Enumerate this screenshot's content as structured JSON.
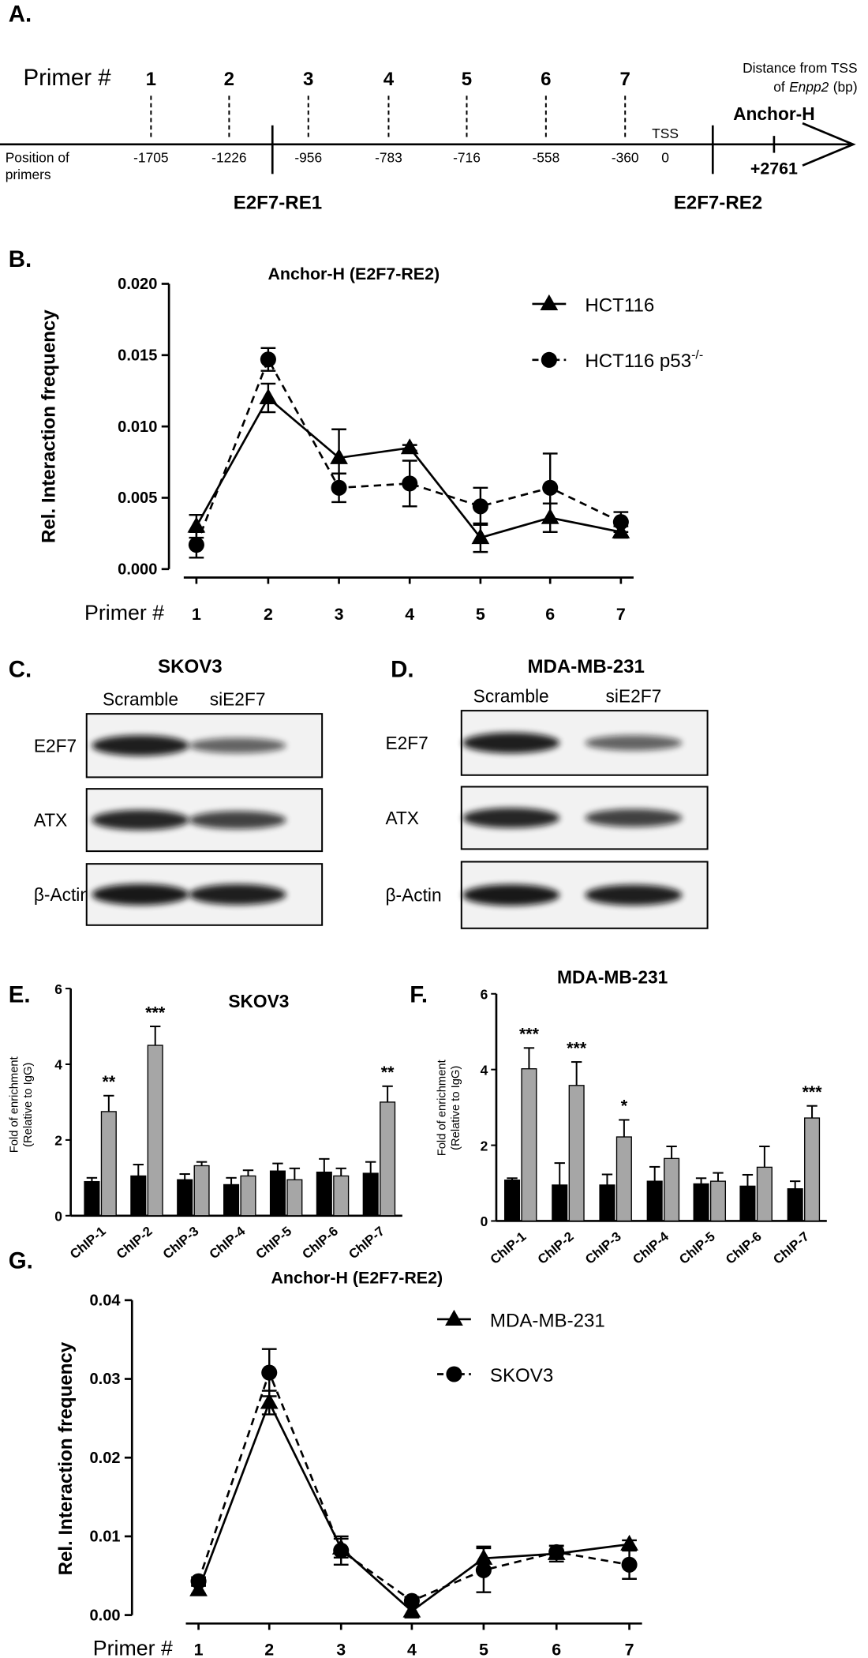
{
  "diagram": {
    "panel_label": "A.",
    "primer_heading": "Primer #",
    "primers": [
      {
        "number": 1,
        "position": -1705
      },
      {
        "number": 2,
        "position": -1226
      },
      {
        "number": 3,
        "position": -956
      },
      {
        "number": 4,
        "position": -783
      },
      {
        "number": 5,
        "position": -716
      },
      {
        "number": 6,
        "position": -558
      },
      {
        "number": 7,
        "position": -360
      }
    ],
    "position_heading": [
      "Position of",
      "primers"
    ],
    "tss_label": "TSS",
    "tss_position": 0,
    "distance_note": [
      "Distance from TSS",
      "of",
      "Enpp2",
      "(bp)"
    ],
    "anchor_label": "Anchor-H",
    "anchor_position": "+2761",
    "element_labels": [
      "E2F7-RE1",
      "E2F7-RE2"
    ]
  },
  "blots": [
    {
      "panel_label": "C.",
      "title": "SKOV3",
      "lanes": [
        "Scramble",
        "siE2F7"
      ],
      "rows": [
        "E2F7",
        "ATX",
        "β-Actin"
      ]
    },
    {
      "panel_label": "D.",
      "title": "MDA-MB-231",
      "lanes": [
        "Scramble",
        "siE2F7"
      ],
      "rows": [
        "E2F7",
        "ATX",
        "β-Actin"
      ]
    }
  ],
  "chart_data": [
    {
      "type": "line",
      "panel_label": "B.",
      "title": "Anchor-H (E2F7-RE2)",
      "y_label": "Rel. Interaction frequency",
      "x_label": "Primer #",
      "categories": [
        "1",
        "2",
        "3",
        "4",
        "5",
        "6",
        "7"
      ],
      "series": [
        {
          "name": "HCT116",
          "marker": "triangle",
          "dashed": false,
          "color": "#000000",
          "values": [
            0.003,
            0.012,
            0.0078,
            0.0085,
            0.0022,
            0.0036,
            0.0026
          ],
          "errors": [
            0.0008,
            0.001,
            0.002,
            0.0002,
            0.001,
            0.001,
            0.0004
          ]
        },
        {
          "name": "HCT116 p53",
          "name_sup": "-/-",
          "marker": "circle",
          "dashed": true,
          "color": "#000000",
          "values": [
            0.0017,
            0.0147,
            0.0057,
            0.006,
            0.0044,
            0.0057,
            0.0033
          ],
          "errors": [
            0.0009,
            0.0008,
            0.001,
            0.0016,
            0.0013,
            0.0024,
            0.0007
          ]
        }
      ],
      "ylim": [
        0,
        0.02
      ],
      "yticks": [
        {
          "value": 0,
          "label": "0.000"
        },
        {
          "value": 0.005,
          "label": "0.005"
        },
        {
          "value": 0.01,
          "label": "0.010"
        },
        {
          "value": 0.015,
          "label": "0.015"
        },
        {
          "value": 0.02,
          "label": "0.020"
        }
      ]
    },
    {
      "type": "bar",
      "panel_label": "E.",
      "title": "SKOV3",
      "y_label": [
        "Fold of enrichment",
        "(Relative to IgG)"
      ],
      "categories": [
        "ChIP-1",
        "ChIP-2",
        "ChIP-3",
        "ChIP-4",
        "ChIP-5",
        "ChIP-6",
        "ChIP-7"
      ],
      "series": [
        {
          "color": "#000000",
          "values": [
            0.9,
            1.05,
            0.95,
            0.82,
            1.18,
            1.15,
            1.12
          ],
          "errors": [
            0.1,
            0.3,
            0.15,
            0.18,
            0.2,
            0.35,
            0.3
          ]
        },
        {
          "color": "#a6a6a6",
          "values": [
            2.75,
            4.5,
            1.32,
            1.05,
            0.95,
            1.05,
            3.0
          ],
          "errors": [
            0.42,
            0.5,
            0.1,
            0.15,
            0.3,
            0.2,
            0.42
          ]
        }
      ],
      "significance": [
        "**",
        "***",
        null,
        null,
        null,
        null,
        "**"
      ],
      "ylim": [
        0,
        6
      ],
      "yticks": [
        0,
        2,
        4,
        6
      ]
    },
    {
      "type": "bar",
      "panel_label": "F.",
      "title": "MDA-MB-231",
      "y_label": [
        "Fold of enrichment",
        "(Relative to IgG)"
      ],
      "categories": [
        "ChIP-1",
        "ChIP-2",
        "ChIP-3",
        "ChIP-4",
        "ChIP-5",
        "ChIP-6",
        "ChIP-7"
      ],
      "series": [
        {
          "color": "#000000",
          "values": [
            1.08,
            0.95,
            0.95,
            1.05,
            0.98,
            0.92,
            0.85
          ],
          "errors": [
            0.05,
            0.58,
            0.28,
            0.38,
            0.15,
            0.3,
            0.2
          ]
        },
        {
          "color": "#a6a6a6",
          "values": [
            4.02,
            3.58,
            2.22,
            1.65,
            1.05,
            1.42,
            2.72
          ],
          "errors": [
            0.55,
            0.62,
            0.45,
            0.32,
            0.22,
            0.55,
            0.32
          ]
        }
      ],
      "significance": [
        "***",
        "***",
        "*",
        null,
        null,
        null,
        "***"
      ],
      "ylim": [
        0,
        6
      ],
      "yticks": [
        0,
        2,
        4,
        6
      ]
    },
    {
      "type": "line",
      "panel_label": "G.",
      "title": "Anchor-H (E2F7-RE2)",
      "y_label": "Rel. Interaction frequency",
      "x_label": "Primer #",
      "categories": [
        "1",
        "2",
        "3",
        "4",
        "5",
        "6",
        "7"
      ],
      "series": [
        {
          "name": "MDA-MB-231",
          "marker": "triangle",
          "dashed": false,
          "color": "#000000",
          "values": [
            0.0032,
            0.027,
            0.0085,
            0.0005,
            0.0072,
            0.0078,
            0.009
          ],
          "errors": [
            0.0005,
            0.0015,
            0.0012,
            0.0008,
            0.0015,
            0.001,
            0.0005
          ]
        },
        {
          "name": "SKOV3",
          "marker": "circle",
          "dashed": true,
          "color": "#000000",
          "values": [
            0.0043,
            0.0308,
            0.0082,
            0.0018,
            0.0057,
            0.008,
            0.0064
          ],
          "errors": [
            0.0005,
            0.003,
            0.0018,
            0.0005,
            0.0028,
            0.0008,
            0.0018
          ]
        }
      ],
      "ylim": [
        0,
        0.04
      ],
      "yticks": [
        {
          "value": 0,
          "label": "0.00"
        },
        {
          "value": 0.01,
          "label": "0.01"
        },
        {
          "value": 0.02,
          "label": "0.02"
        },
        {
          "value": 0.03,
          "label": "0.03"
        },
        {
          "value": 0.04,
          "label": "0.04"
        }
      ]
    }
  ]
}
